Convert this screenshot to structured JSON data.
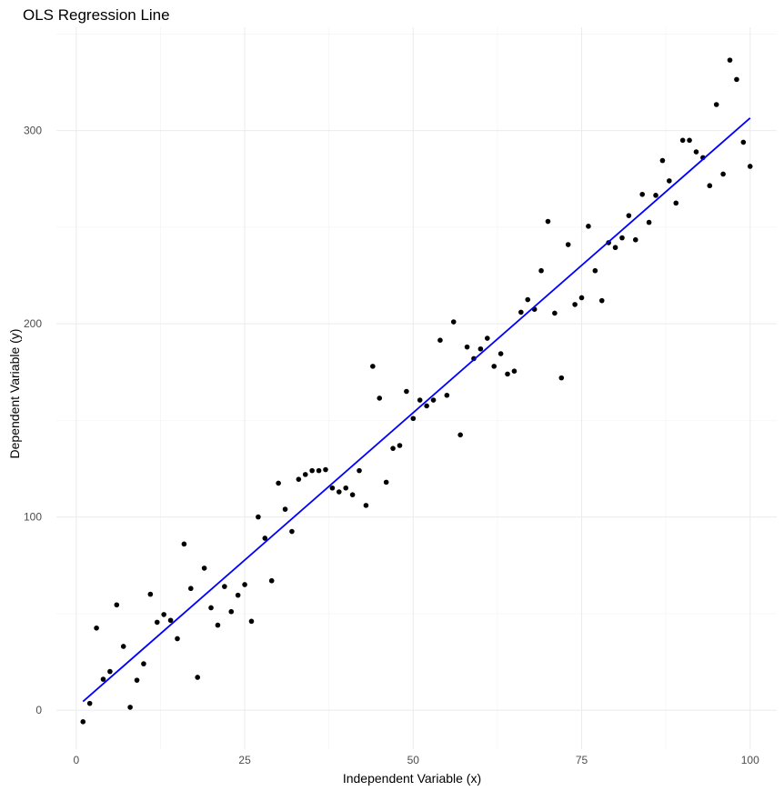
{
  "chart_data": {
    "type": "scatter",
    "title": "OLS Regression Line",
    "xlabel": "Independent Variable (x)",
    "ylabel": "Dependent Variable (y)",
    "xlim": [
      -2.95,
      103.95
    ],
    "ylim": [
      -20.2,
      353.5
    ],
    "x_ticks": [
      0,
      25,
      50,
      75,
      100
    ],
    "x_tick_labels": [
      "0",
      "25",
      "50",
      "75",
      "100"
    ],
    "y_ticks": [
      0,
      100,
      200,
      300
    ],
    "y_tick_labels": [
      "0",
      "100",
      "200",
      "300"
    ],
    "grid": true,
    "legend": "none",
    "colors": {
      "points": "#000000",
      "fit_line": "#0000ff",
      "grid": "#ebebeb"
    },
    "series": [
      {
        "type": "scatter",
        "points": [
          [
            1,
            -6
          ],
          [
            2,
            3.5
          ],
          [
            3,
            42.5
          ],
          [
            4,
            16
          ],
          [
            5,
            20
          ],
          [
            6,
            54.5
          ],
          [
            7,
            33
          ],
          [
            8,
            1.5
          ],
          [
            9,
            15.5
          ],
          [
            10,
            24
          ],
          [
            11,
            60
          ],
          [
            12,
            45.5
          ],
          [
            13,
            49.5
          ],
          [
            14,
            46.5
          ],
          [
            15,
            37
          ],
          [
            16,
            86
          ],
          [
            17,
            63
          ],
          [
            18,
            17
          ],
          [
            19,
            73.5
          ],
          [
            20,
            53
          ],
          [
            21,
            44
          ],
          [
            22,
            64
          ],
          [
            23,
            51
          ],
          [
            24,
            59.5
          ],
          [
            25,
            65
          ],
          [
            26,
            46
          ],
          [
            27,
            100
          ],
          [
            28,
            89
          ],
          [
            29,
            67
          ],
          [
            30,
            117.5
          ],
          [
            31,
            104
          ],
          [
            32,
            92.5
          ],
          [
            33,
            119.5
          ],
          [
            34,
            122
          ],
          [
            35,
            124
          ],
          [
            36,
            124
          ],
          [
            37,
            124.5
          ],
          [
            38,
            115
          ],
          [
            39,
            113
          ],
          [
            40,
            115
          ],
          [
            41,
            111.5
          ],
          [
            42,
            124
          ],
          [
            43,
            106
          ],
          [
            44,
            178
          ],
          [
            45,
            161.5
          ],
          [
            46,
            118
          ],
          [
            47,
            135.5
          ],
          [
            48,
            137
          ],
          [
            49,
            165
          ],
          [
            50,
            151
          ],
          [
            51,
            160.5
          ],
          [
            52,
            157.5
          ],
          [
            53,
            160.5
          ],
          [
            54,
            191.5
          ],
          [
            55,
            163
          ],
          [
            56,
            201
          ],
          [
            57,
            142.5
          ],
          [
            58,
            188
          ],
          [
            59,
            182
          ],
          [
            60,
            187
          ],
          [
            61,
            192.5
          ],
          [
            62,
            178
          ],
          [
            63,
            184.5
          ],
          [
            64,
            174
          ],
          [
            65,
            175.5
          ],
          [
            66,
            206
          ],
          [
            67,
            212.5
          ],
          [
            68,
            207.5
          ],
          [
            69,
            227.5
          ],
          [
            70,
            253
          ],
          [
            71,
            205.5
          ],
          [
            72,
            172
          ],
          [
            73,
            241
          ],
          [
            74,
            210
          ],
          [
            75,
            213.5
          ],
          [
            76,
            250.5
          ],
          [
            77,
            227.5
          ],
          [
            78,
            212
          ],
          [
            79,
            242
          ],
          [
            80,
            239.5
          ],
          [
            81,
            244.5
          ],
          [
            82,
            256
          ],
          [
            83,
            243.5
          ],
          [
            84,
            267
          ],
          [
            85,
            252.5
          ],
          [
            86,
            266.5
          ],
          [
            87,
            284.5
          ],
          [
            88,
            274
          ],
          [
            89,
            262.5
          ],
          [
            90,
            295
          ],
          [
            91,
            295
          ],
          [
            92,
            289
          ],
          [
            93,
            286
          ],
          [
            94,
            271.5
          ],
          [
            95,
            313.5
          ],
          [
            96,
            277.5
          ],
          [
            97,
            336.5
          ],
          [
            98,
            326.5
          ],
          [
            99,
            294
          ],
          [
            100,
            281.5
          ]
        ]
      },
      {
        "type": "line",
        "x": [
          1,
          100
        ],
        "y": [
          4.5,
          306.5
        ]
      }
    ]
  }
}
